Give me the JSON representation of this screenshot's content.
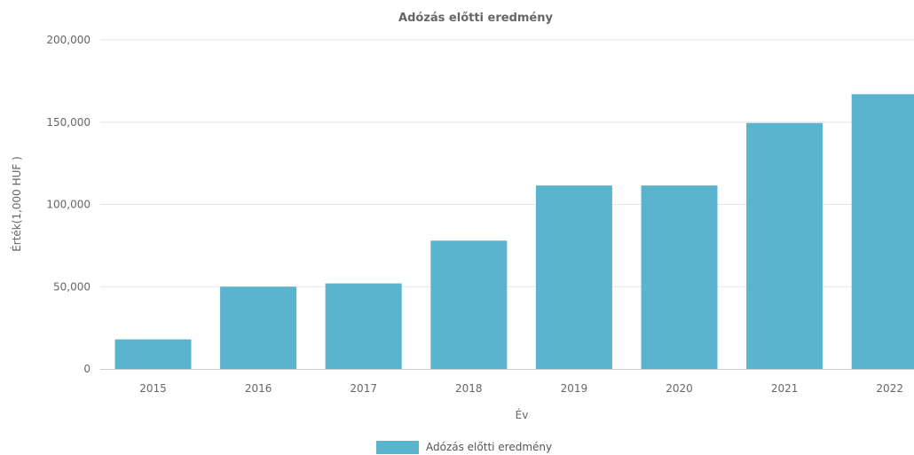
{
  "chart_data": {
    "type": "bar",
    "title": "Adózás előtti eredmény",
    "xlabel": "Év",
    "ylabel": "Érték(1,000 HUF )",
    "categories": [
      "2015",
      "2016",
      "2017",
      "2018",
      "2019",
      "2020",
      "2021",
      "2022"
    ],
    "series": [
      {
        "name": "Adózás előtti eredmény",
        "values": [
          18000,
          50000,
          52000,
          78000,
          111500,
          111500,
          149500,
          167000
        ]
      }
    ],
    "ylim": [
      0,
      200000
    ],
    "y_ticks": [
      "0",
      "50,000",
      "100,000",
      "150,000",
      "200,000"
    ],
    "grid": true,
    "legend_position": "bottom-center",
    "colors": {
      "bar": "#5ab4cd",
      "grid": "#e6e6e6",
      "axis": "#cccccc",
      "text": "#666666",
      "title": "#666666"
    }
  }
}
